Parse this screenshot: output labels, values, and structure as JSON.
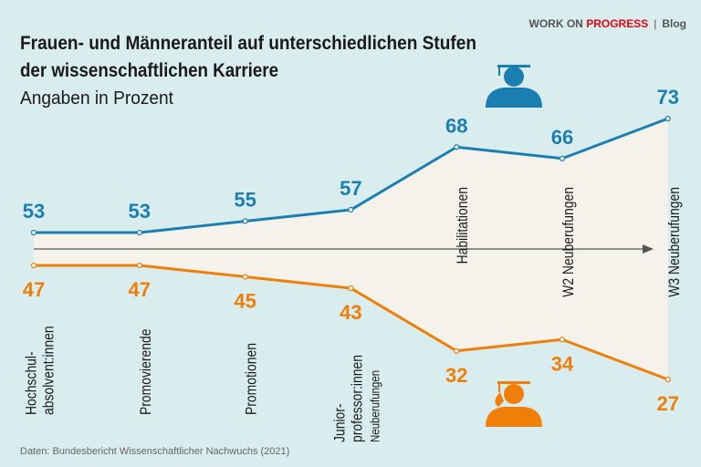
{
  "brand": {
    "part1": "WORK ON ",
    "part2": "PROGRESS",
    "sep": "|",
    "part3": "Blog"
  },
  "chart_data": {
    "type": "line",
    "title": "Frauen- und Männeranteil auf unterschiedlichen Stufen der wissenschaftlichen Karriere",
    "title_lines": [
      "Frauen- und Männeranteil auf unterschiedlichen Stufen",
      "der wissenschaftlichen Karriere"
    ],
    "subtitle": "Angaben in Prozent",
    "categories": [
      [
        "Hochschul-",
        "absolvent:innen"
      ],
      [
        "Promovierende"
      ],
      [
        "Promotionen"
      ],
      [
        "Junior-",
        "professor:innen",
        "Neuberufungen"
      ],
      [
        "Habilitationen"
      ],
      [
        "W2 Neuberufungen"
      ],
      [
        "W3 Neuberufungen"
      ]
    ],
    "series": [
      {
        "icon": "male-graduate-icon",
        "color": "#1a7fb0",
        "values": [
          53,
          53,
          55,
          57,
          68,
          66,
          73
        ]
      },
      {
        "icon": "female-graduate-icon",
        "color": "#f07f0a",
        "values": [
          47,
          47,
          45,
          43,
          32,
          34,
          27
        ]
      }
    ],
    "fill_color": "#f4f2ea",
    "source": "Daten: Bundesbericht Wissenschaftlicher Nachwuchs (2021)"
  }
}
